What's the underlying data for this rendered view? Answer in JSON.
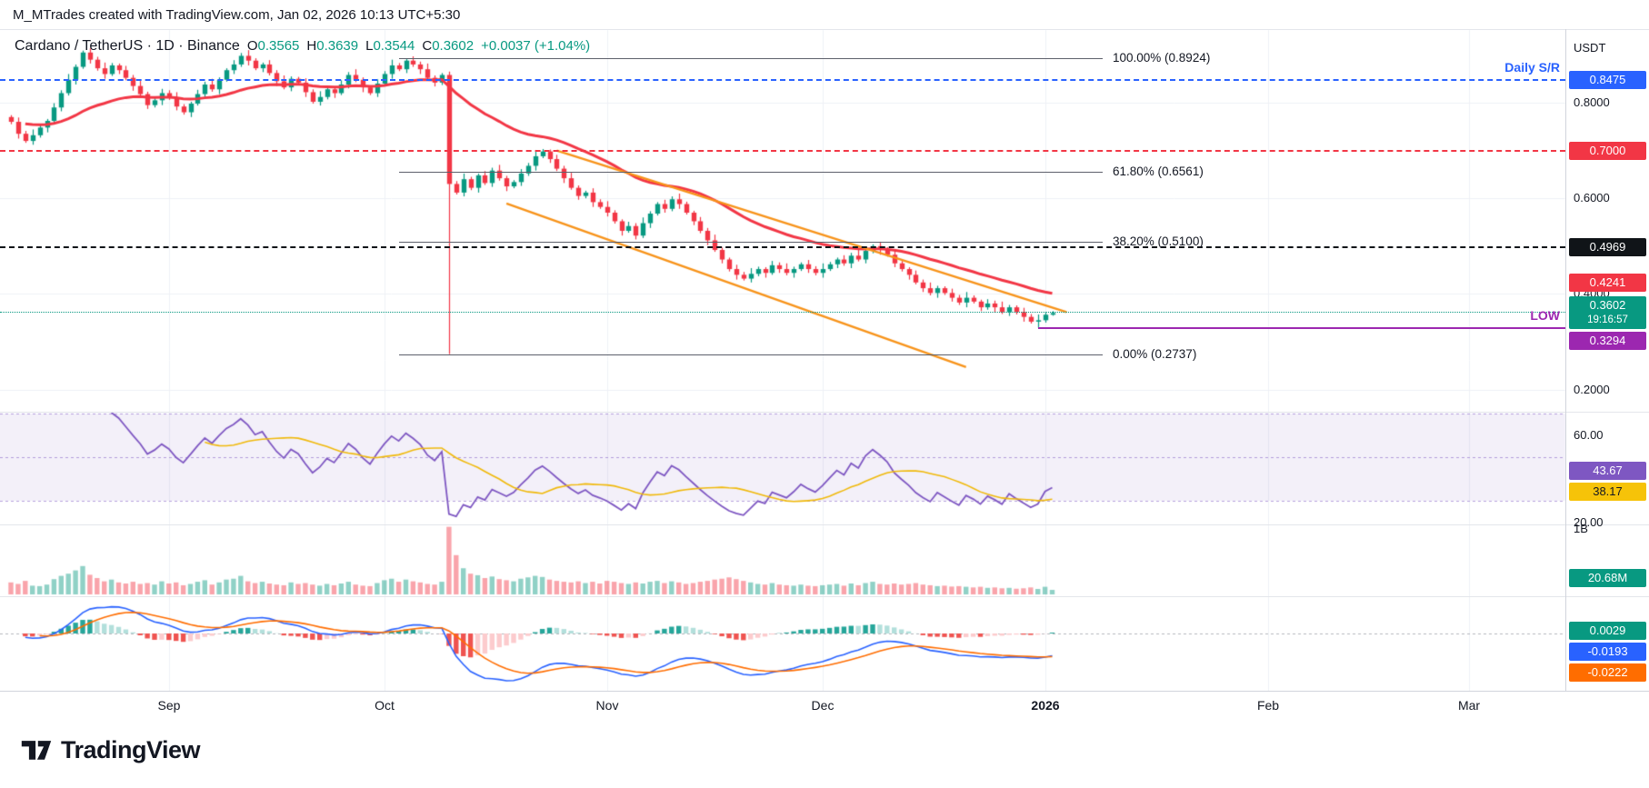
{
  "topbar": {
    "attribution": "M_MTrades created with TradingView.com, Jan 02, 2026 10:13 UTC+5:30"
  },
  "symbol_row": {
    "title": "Cardano / TetherUS · 1D · Binance",
    "o_label": "O",
    "o": "0.3565",
    "h_label": "H",
    "h": "0.3639",
    "l_label": "L",
    "l": "0.3544",
    "c_label": "C",
    "c": "0.3602",
    "change": "+0.0037 (+1.04%)",
    "up_color": "#089981"
  },
  "price_scale": {
    "currency": "USDT",
    "plain": [
      {
        "text": "0.8000",
        "price": 0.8
      },
      {
        "text": "0.6000",
        "price": 0.6
      },
      {
        "text": "0.4000",
        "price": 0.4
      },
      {
        "text": "0.2000",
        "price": 0.2
      }
    ],
    "badges": [
      {
        "name": "sr-badge",
        "text": "0.8475",
        "bg": "#2962ff",
        "fg": "#ffffff",
        "price": 0.8475
      },
      {
        "name": "level-badge-0700",
        "text": "0.7000",
        "bg": "#f23645",
        "fg": "#ffffff",
        "price": 0.7
      },
      {
        "name": "level-badge-04969",
        "text": "0.4969",
        "bg": "#101418",
        "fg": "#ffffff",
        "price": 0.4969
      },
      {
        "name": "ma-value-badge",
        "text": "0.4241",
        "bg": "#f23645",
        "fg": "#ffffff",
        "price": 0.4241
      },
      {
        "name": "last-price-badge",
        "text": "0.3602",
        "sub": "19:16:57",
        "bg": "#089981",
        "fg": "#ffffff",
        "price": 0.3602
      },
      {
        "name": "low-price-badge",
        "text": "0.3294",
        "bg": "#9c27b0",
        "fg": "#ffffff",
        "price": 0.3294
      }
    ]
  },
  "rsi_scale": {
    "plain": [
      {
        "text": "60.00",
        "value": 60
      },
      {
        "text": "20.00",
        "value": 20
      }
    ],
    "badges": [
      {
        "name": "rsi-value-badge",
        "text": "43.67",
        "bg": "#7e57c2",
        "fg": "#ffffff",
        "value": 43.67
      },
      {
        "name": "rsi-ma-badge",
        "text": "38.17",
        "bg": "#f6c309",
        "fg": "#131722",
        "value": 38.17
      }
    ]
  },
  "volume_scale": {
    "plain_top": "1B",
    "badge": {
      "name": "volume-value-badge",
      "text": "20.68M",
      "bg": "#089981",
      "fg": "#ffffff"
    }
  },
  "macd_scale": {
    "badges": [
      {
        "name": "macd-hist-badge",
        "text": "0.0029",
        "bg": "#089981",
        "fg": "#ffffff",
        "value": 0.0029
      },
      {
        "name": "macd-line-badge",
        "text": "-0.0193",
        "bg": "#2962ff",
        "fg": "#ffffff",
        "value": -0.0193
      },
      {
        "name": "macd-signal-badge",
        "text": "-0.0222",
        "bg": "#ff6d00",
        "fg": "#ffffff",
        "value": -0.0222
      }
    ]
  },
  "time_axis": {
    "months": [
      {
        "label": "Sep",
        "day": 22
      },
      {
        "label": "Oct",
        "day": 52
      },
      {
        "label": "Nov",
        "day": 83
      },
      {
        "label": "Dec",
        "day": 113
      },
      {
        "label": "2026",
        "day": 144,
        "bold": true
      },
      {
        "label": "Feb",
        "day": 175
      },
      {
        "label": "Mar",
        "day": 203
      }
    ]
  },
  "footer": {
    "logo_text": "TradingView"
  },
  "chart_data": {
    "type": "candlestick",
    "title": "Cardano / TetherUS",
    "interval": "1D",
    "exchange": "Binance",
    "x_start": "2025-08-10",
    "x_end": "2026-01-02",
    "price_range_visible": [
      0.2,
      0.95
    ],
    "up_color": "#089981",
    "down_color": "#f23645",
    "first_open": 0.77,
    "closes": [
      0.76,
      0.735,
      0.72,
      0.732,
      0.748,
      0.762,
      0.79,
      0.82,
      0.848,
      0.875,
      0.905,
      0.89,
      0.872,
      0.86,
      0.878,
      0.868,
      0.852,
      0.835,
      0.818,
      0.795,
      0.805,
      0.82,
      0.81,
      0.792,
      0.78,
      0.798,
      0.818,
      0.838,
      0.828,
      0.848,
      0.868,
      0.88,
      0.898,
      0.888,
      0.872,
      0.88,
      0.862,
      0.845,
      0.832,
      0.85,
      0.842,
      0.822,
      0.802,
      0.812,
      0.828,
      0.82,
      0.838,
      0.858,
      0.848,
      0.832,
      0.82,
      0.84,
      0.86,
      0.878,
      0.87,
      0.888,
      0.88,
      0.87,
      0.852,
      0.842,
      0.858,
      0.63,
      0.612,
      0.64,
      0.622,
      0.648,
      0.632,
      0.658,
      0.642,
      0.625,
      0.634,
      0.652,
      0.668,
      0.688,
      0.698,
      0.682,
      0.662,
      0.642,
      0.622,
      0.605,
      0.612,
      0.592,
      0.582,
      0.57,
      0.552,
      0.532,
      0.542,
      0.522,
      0.548,
      0.568,
      0.588,
      0.578,
      0.598,
      0.588,
      0.57,
      0.552,
      0.532,
      0.512,
      0.492,
      0.472,
      0.452,
      0.44,
      0.432,
      0.442,
      0.452,
      0.444,
      0.46,
      0.452,
      0.444,
      0.452,
      0.462,
      0.452,
      0.444,
      0.452,
      0.462,
      0.472,
      0.464,
      0.48,
      0.472,
      0.49,
      0.5,
      0.492,
      0.482,
      0.464,
      0.452,
      0.44,
      0.424,
      0.412,
      0.402,
      0.412,
      0.402,
      0.392,
      0.382,
      0.392,
      0.384,
      0.372,
      0.38,
      0.372,
      0.362,
      0.372,
      0.362,
      0.352,
      0.342,
      0.345,
      0.3565,
      0.3602
    ],
    "volume_m": [
      55,
      48,
      62,
      40,
      38,
      45,
      70,
      85,
      95,
      110,
      130,
      90,
      75,
      60,
      68,
      55,
      50,
      58,
      48,
      52,
      45,
      60,
      50,
      55,
      42,
      48,
      58,
      65,
      45,
      55,
      68,
      72,
      85,
      60,
      52,
      58,
      50,
      45,
      42,
      55,
      48,
      52,
      45,
      40,
      48,
      42,
      50,
      58,
      45,
      40,
      38,
      52,
      65,
      72,
      58,
      68,
      60,
      55,
      48,
      45,
      58,
      310,
      180,
      120,
      95,
      88,
      75,
      82,
      70,
      65,
      60,
      72,
      78,
      85,
      80,
      68,
      62,
      58,
      55,
      60,
      52,
      58,
      50,
      62,
      58,
      52,
      48,
      55,
      50,
      58,
      62,
      52,
      60,
      55,
      48,
      52,
      58,
      62,
      68,
      72,
      78,
      70,
      62,
      55,
      48,
      45,
      52,
      45,
      42,
      40,
      45,
      40,
      38,
      42,
      45,
      48,
      40,
      50,
      42,
      52,
      58,
      48,
      45,
      50,
      45,
      48,
      52,
      45,
      42,
      38,
      40,
      36,
      38,
      35,
      32,
      35,
      30,
      32,
      28,
      30,
      26,
      28,
      32,
      25,
      35,
      20.68
    ],
    "special_candles": {
      "61": {
        "h": 0.865,
        "l": 0.2737
      },
      "143": {
        "l": 0.3294
      },
      "145": {
        "o": 0.3565,
        "h": 0.3639,
        "l": 0.3544
      }
    },
    "overlays": {
      "ma": {
        "kind": "ema",
        "length": 30,
        "color": "#f23645"
      },
      "channel": {
        "color": "#f7931a",
        "lines": [
          [
            [
              76,
              0.7
            ],
            [
              147,
              0.362
            ]
          ],
          [
            [
              69,
              0.589
            ],
            [
              133,
              0.247
            ]
          ]
        ]
      },
      "hlines": [
        {
          "name": "daily-sr-line",
          "price": 0.8475,
          "color": "#2962ff",
          "width": 2,
          "dash": "dashed",
          "label": "Daily S/R",
          "label_color": "#2962ff"
        },
        {
          "name": "resistance-line-0700",
          "price": 0.7,
          "color": "#f23645",
          "width": 2,
          "dash": "dashed"
        },
        {
          "name": "support-line-04969",
          "price": 0.4969,
          "color": "#101418",
          "width": 2,
          "dash": "dashed"
        },
        {
          "name": "current-price-line",
          "price": 0.3602,
          "color": "#089981",
          "width": 1,
          "dash": "dotted"
        },
        {
          "name": "low-line",
          "price": 0.3294,
          "color": "#9c27b0",
          "width": 2,
          "dash": "solid",
          "from_day": 143,
          "label": "LOW",
          "label_color": "#9c27b0"
        }
      ],
      "fib": {
        "from_day": 54,
        "to_day": 152,
        "line_color": "#5d606b",
        "levels": [
          {
            "label": "100.00% (0.8924)",
            "price": 0.8924
          },
          {
            "label": "61.80% (0.6561)",
            "price": 0.6561
          },
          {
            "label": "38.20% (0.5100)",
            "price": 0.51
          },
          {
            "label": "0.00% (0.2737)",
            "price": 0.2737
          }
        ]
      }
    },
    "indicators": [
      {
        "name": "RSI",
        "length": 14,
        "line_color": "#7e57c2",
        "ma_color": "#f0b90b",
        "band": [
          30,
          70
        ],
        "last": 43.67,
        "ma_last": 38.17
      },
      {
        "name": "Volume",
        "last": "20.68M",
        "up_color": "#089981",
        "down_color": "#f23645"
      },
      {
        "name": "MACD",
        "fast": 12,
        "slow": 26,
        "signal": 9,
        "macd_color": "#2962ff",
        "signal_color": "#ff6d00",
        "hist_last": 0.0029,
        "macd_last": -0.0193,
        "signal_last": -0.0222
      }
    ]
  }
}
